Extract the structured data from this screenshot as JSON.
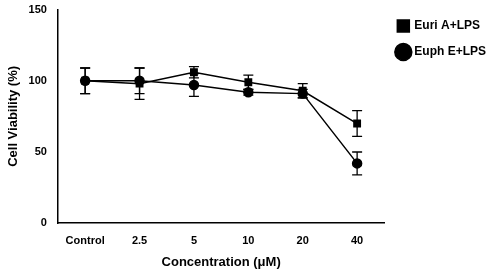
{
  "chart_data": {
    "type": "line",
    "x_label": "Concentration (μM)",
    "y_label": "Cell Viability (%)",
    "categories": [
      "Control",
      "2.5",
      "5",
      "10",
      "20",
      "40"
    ],
    "series": [
      {
        "name": "Euri A+LPS",
        "color": "#000000",
        "marker": "square",
        "line_style": "solid",
        "values": [
          100,
          98,
          106,
          99,
          93,
          70
        ],
        "errors": [
          9,
          11,
          4,
          5,
          5,
          9
        ]
      },
      {
        "name": "Euph E+LPS",
        "color": "#000000",
        "marker": "circle",
        "line_style": "solid",
        "values": [
          100,
          100,
          97,
          92,
          91,
          42
        ],
        "errors": [
          9,
          9,
          8,
          2,
          3,
          8
        ]
      }
    ],
    "ylim": [
      0,
      150
    ],
    "yticks": [
      0,
      50,
      100,
      150
    ],
    "grid": false,
    "legend": "right"
  }
}
